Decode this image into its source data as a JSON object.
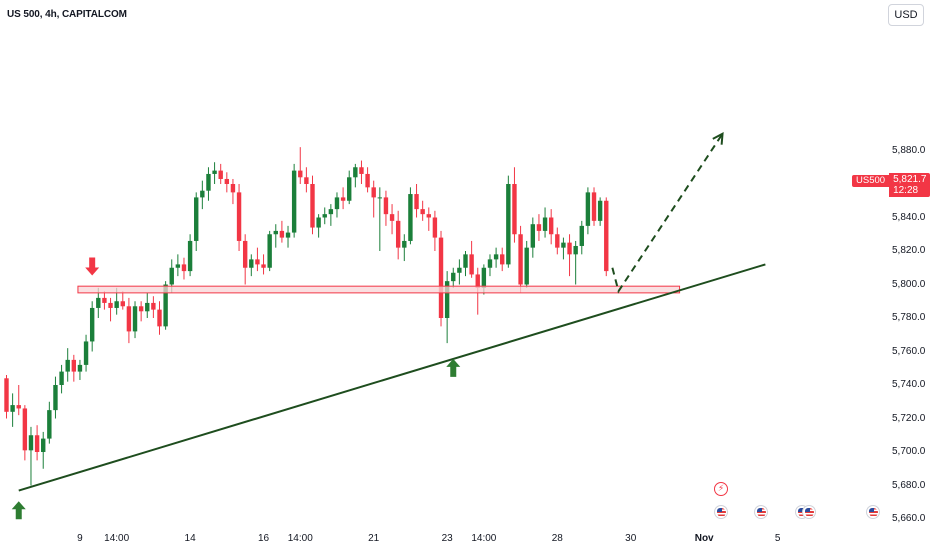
{
  "header": {
    "symbol_title": "US 500, 4h, CAPITALCOM",
    "currency": "USD"
  },
  "price_tag": {
    "symbol": "US500",
    "price": "5,821.7",
    "countdown": "12:28"
  },
  "colors": {
    "up": "#089981",
    "down": "#f23645",
    "up_candle": "#1b7f3a",
    "trend": "#1e4d1e",
    "zone_fill": "#f8d4d7",
    "zone_stroke": "#f23645",
    "arrow_up": "#2e7d32",
    "arrow_down": "#f23645"
  },
  "icons": {
    "events": [
      "lightning-icon",
      "us-flag-icon"
    ]
  },
  "chart_data": {
    "type": "candlestick",
    "title": "US 500, 4h, CAPITALCOM",
    "y_ticks": [
      5660,
      5680,
      5700,
      5720,
      5740,
      5760,
      5780,
      5800,
      5820,
      5840,
      5860,
      5880
    ],
    "y_tick_labels": [
      "5,660.0",
      "5,680.0",
      "5,700.0",
      "5,720.0",
      "5,740.0",
      "5,760.0",
      "5,780.0",
      "5,800.0",
      "5,820.0",
      "5,840.0",
      "5,860.0",
      "5,880.0"
    ],
    "ylim": [
      5658,
      5895
    ],
    "x_labels": [
      {
        "label": "9",
        "bar": 12
      },
      {
        "label": "14:00",
        "bar": 18
      },
      {
        "label": "14",
        "bar": 30
      },
      {
        "label": "16",
        "bar": 42
      },
      {
        "label": "14:00",
        "bar": 48
      },
      {
        "label": "21",
        "bar": 60
      },
      {
        "label": "23",
        "bar": 72
      },
      {
        "label": "14:00",
        "bar": 78
      },
      {
        "label": "28",
        "bar": 90
      },
      {
        "label": "30",
        "bar": 102
      },
      {
        "label": "Nov",
        "bar": 114,
        "bold": true
      },
      {
        "label": "5",
        "bar": 126
      }
    ],
    "bars_count": 130,
    "candles": [
      [
        5744,
        5746,
        5720,
        5724
      ],
      [
        5724,
        5735,
        5715,
        5728
      ],
      [
        5728,
        5740,
        5722,
        5726
      ],
      [
        5726,
        5728,
        5695,
        5701
      ],
      [
        5701,
        5715,
        5680,
        5710
      ],
      [
        5710,
        5716,
        5695,
        5700
      ],
      [
        5700,
        5712,
        5690,
        5708
      ],
      [
        5708,
        5730,
        5705,
        5725
      ],
      [
        5725,
        5745,
        5720,
        5740
      ],
      [
        5740,
        5752,
        5735,
        5748
      ],
      [
        5748,
        5762,
        5742,
        5755
      ],
      [
        5755,
        5758,
        5742,
        5748
      ],
      [
        5748,
        5755,
        5743,
        5752
      ],
      [
        5752,
        5770,
        5748,
        5766
      ],
      [
        5766,
        5790,
        5760,
        5786
      ],
      [
        5786,
        5798,
        5780,
        5792
      ],
      [
        5792,
        5796,
        5785,
        5789
      ],
      [
        5789,
        5792,
        5778,
        5786
      ],
      [
        5786,
        5798,
        5782,
        5790
      ],
      [
        5790,
        5796,
        5785,
        5787
      ],
      [
        5787,
        5792,
        5765,
        5772
      ],
      [
        5772,
        5790,
        5768,
        5787
      ],
      [
        5787,
        5790,
        5778,
        5784
      ],
      [
        5784,
        5795,
        5780,
        5789
      ],
      [
        5789,
        5793,
        5780,
        5785
      ],
      [
        5785,
        5790,
        5770,
        5775
      ],
      [
        5775,
        5802,
        5773,
        5800
      ],
      [
        5800,
        5815,
        5795,
        5810
      ],
      [
        5810,
        5818,
        5805,
        5812
      ],
      [
        5812,
        5816,
        5803,
        5808
      ],
      [
        5808,
        5830,
        5805,
        5826
      ],
      [
        5826,
        5855,
        5820,
        5852
      ],
      [
        5852,
        5862,
        5845,
        5856
      ],
      [
        5856,
        5870,
        5850,
        5866
      ],
      [
        5866,
        5873,
        5860,
        5868
      ],
      [
        5868,
        5872,
        5860,
        5863
      ],
      [
        5863,
        5867,
        5855,
        5860
      ],
      [
        5860,
        5863,
        5848,
        5855
      ],
      [
        5855,
        5860,
        5820,
        5826
      ],
      [
        5826,
        5830,
        5800,
        5810
      ],
      [
        5810,
        5818,
        5805,
        5815
      ],
      [
        5815,
        5822,
        5808,
        5812
      ],
      [
        5812,
        5818,
        5806,
        5810
      ],
      [
        5810,
        5832,
        5808,
        5830
      ],
      [
        5830,
        5836,
        5822,
        5832
      ],
      [
        5832,
        5838,
        5825,
        5828
      ],
      [
        5828,
        5835,
        5822,
        5831
      ],
      [
        5831,
        5872,
        5828,
        5868
      ],
      [
        5868,
        5882,
        5860,
        5864
      ],
      [
        5864,
        5870,
        5855,
        5860
      ],
      [
        5860,
        5865,
        5830,
        5834
      ],
      [
        5834,
        5842,
        5828,
        5840
      ],
      [
        5840,
        5846,
        5836,
        5842
      ],
      [
        5842,
        5848,
        5835,
        5845
      ],
      [
        5845,
        5855,
        5840,
        5852
      ],
      [
        5852,
        5858,
        5845,
        5850
      ],
      [
        5850,
        5868,
        5848,
        5864
      ],
      [
        5864,
        5872,
        5858,
        5870
      ],
      [
        5870,
        5874,
        5860,
        5866
      ],
      [
        5866,
        5870,
        5855,
        5858
      ],
      [
        5858,
        5862,
        5840,
        5852
      ],
      [
        5852,
        5858,
        5820,
        5852
      ],
      [
        5852,
        5856,
        5835,
        5842
      ],
      [
        5842,
        5848,
        5830,
        5838
      ],
      [
        5838,
        5844,
        5815,
        5822
      ],
      [
        5822,
        5830,
        5814,
        5826
      ],
      [
        5826,
        5858,
        5824,
        5854
      ],
      [
        5854,
        5860,
        5840,
        5845
      ],
      [
        5845,
        5850,
        5838,
        5842
      ],
      [
        5842,
        5846,
        5832,
        5840
      ],
      [
        5840,
        5844,
        5820,
        5828
      ],
      [
        5828,
        5832,
        5775,
        5780
      ],
      [
        5780,
        5808,
        5765,
        5802
      ],
      [
        5802,
        5810,
        5798,
        5807
      ],
      [
        5807,
        5815,
        5800,
        5810
      ],
      [
        5810,
        5820,
        5805,
        5818
      ],
      [
        5818,
        5826,
        5804,
        5806
      ],
      [
        5806,
        5810,
        5782,
        5798
      ],
      [
        5798,
        5812,
        5794,
        5810
      ],
      [
        5810,
        5818,
        5805,
        5815
      ],
      [
        5815,
        5822,
        5810,
        5818
      ],
      [
        5818,
        5822,
        5808,
        5812
      ],
      [
        5812,
        5865,
        5810,
        5860
      ],
      [
        5860,
        5870,
        5825,
        5830
      ],
      [
        5830,
        5835,
        5795,
        5800
      ],
      [
        5800,
        5826,
        5798,
        5822
      ],
      [
        5822,
        5840,
        5816,
        5836
      ],
      [
        5836,
        5842,
        5826,
        5832
      ],
      [
        5832,
        5846,
        5828,
        5840
      ],
      [
        5840,
        5845,
        5824,
        5830
      ],
      [
        5830,
        5834,
        5818,
        5822
      ],
      [
        5822,
        5828,
        5815,
        5825
      ],
      [
        5825,
        5830,
        5805,
        5818
      ],
      [
        5818,
        5826,
        5800,
        5823
      ],
      [
        5823,
        5838,
        5818,
        5835
      ],
      [
        5835,
        5858,
        5830,
        5855
      ],
      [
        5855,
        5858,
        5835,
        5838
      ],
      [
        5838,
        5852,
        5835,
        5850
      ],
      [
        5850,
        5852,
        5805,
        5808
      ]
    ],
    "annotations": {
      "trendline": {
        "from": {
          "bar": 2,
          "price": 5677
        },
        "to": {
          "bar": 124,
          "price": 5812
        }
      },
      "resistance_zone": {
        "bar_from": 12,
        "bar_to": 109,
        "price_low": 5795,
        "price_high": 5799
      },
      "forecast_path": [
        {
          "bar": 99,
          "price": 5810
        },
        {
          "bar": 100,
          "price": 5796
        },
        {
          "bar": 117,
          "price": 5890
        }
      ],
      "up_arrows": [
        {
          "bar": 2,
          "price": 5673
        },
        {
          "bar": 73,
          "price": 5758
        }
      ],
      "down_arrows": [
        {
          "bar": 14,
          "price": 5803
        }
      ]
    }
  }
}
